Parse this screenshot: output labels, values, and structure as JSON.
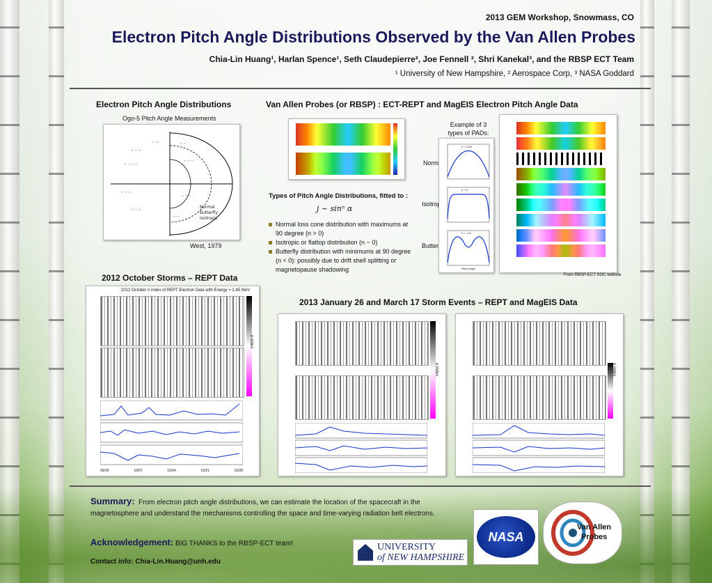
{
  "header": {
    "workshop": "2013 GEM Workshop, Snowmass, CO",
    "title": "Electron Pitch Angle Distributions Observed by the Van Allen Probes",
    "authors": "Chia-Lin Huang¹, Harlan Spence¹, Seth Claudepierre², Joe Fennell ², Shri Kanekal³, and the RBSP ECT Team",
    "affiliations": "¹ University of New Hampshire, ² Aerospace Corp, ³ NASA Goddard"
  },
  "left": {
    "heading": "Electron Pitch Angle Distributions",
    "ogo_caption": "Ogo-5 Pitch Angle Measurements",
    "legend": [
      "Normal",
      "Butterfly",
      "Isotropic"
    ],
    "credit": "West, 1979"
  },
  "middle": {
    "heading": "Van Allen Probes  (or RBSP) :  ECT-REPT and MagEIS Electron Pitch Angle Data",
    "types_heading": "Types of Pitch Angle Distributions, fitted to :",
    "formula": "j ~ sinⁿ α",
    "bullets": [
      "Normal loss cone distribution with maximums at 90 degree (n > 0)",
      "Isotropic or flattop distribution (n ~ 0)",
      "Butterfly distribution with minimums at 90 degree (n < 0): possibly due to drift shell splitting or magnetopause shadowing"
    ],
    "example_caption": "Example of 3 types of PADs:",
    "pad_labels": [
      "Normal",
      "Isotropic",
      "Butterfly"
    ],
    "pad_n": [
      "n = 2.09",
      "n = 0",
      "n = -1.5"
    ],
    "pad_xlabel": "Pitch Angle",
    "rbsp_credit": "From RBSP-ECT SOC website"
  },
  "storms_2012": {
    "heading": "2012 October Storms – REPT Data",
    "plot_title": "2012 October n index of REPT Electron Data with Energy = 2.85 MeV",
    "colorbar_label": "n index",
    "date_ticks": [
      "09/30",
      "10/07",
      "10/14",
      "10/21",
      "10/28"
    ]
  },
  "storms_2013": {
    "heading": "2013 January 26 and March 17 Storm Events – REPT and MagEIS Data",
    "colorbar_label": "n index"
  },
  "footer": {
    "summary_label": "Summary:",
    "summary_text": "From electron pitch angle distributions, we can estimate the location of the spacecraft in the magnetosphere and understand the mechanisms controlling the space and time-varying radiation belt electrons.",
    "ack_label": "Acknowledgement:",
    "ack_text": "BIG THANKS to the RBSP-ECT team!",
    "contact": "Contact info: Chia-Lin.Huang@unh.edu",
    "unh_line1": "UNIVERSITY",
    "unh_line2": "of NEW HAMPSHIRE",
    "nasa": "NASA",
    "vap_line1": "Van Allen",
    "vap_line2": "Probes"
  }
}
